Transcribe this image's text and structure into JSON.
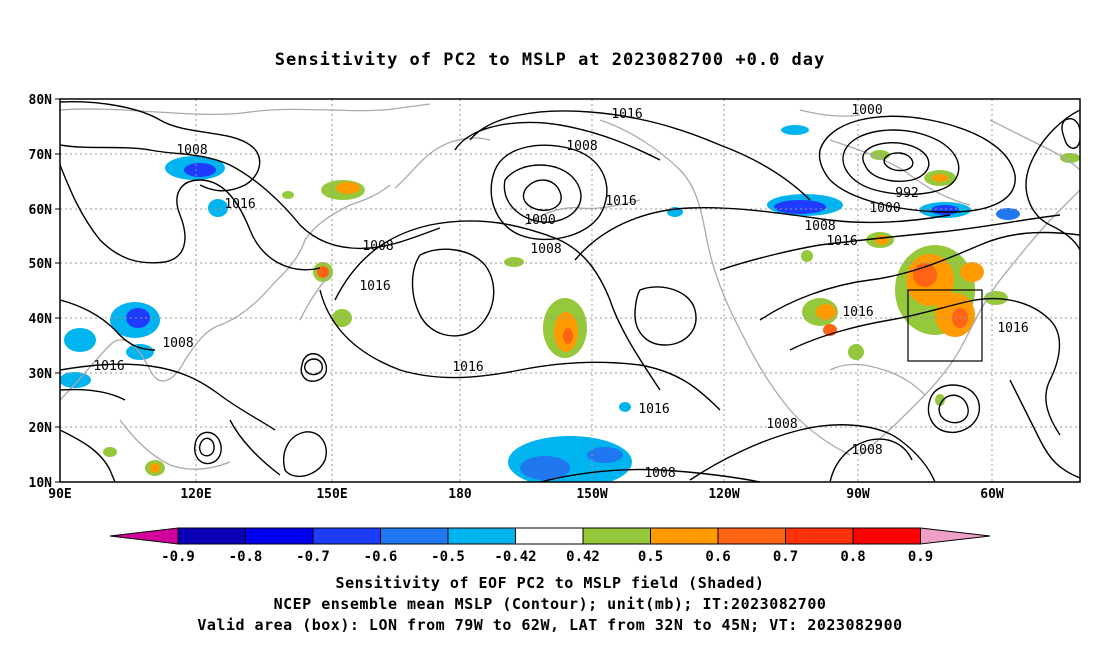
{
  "title": "Sensitivity of PC2 to MSLP at 2023082700 +0.0 day",
  "map": {
    "lat_labels": [
      "80N",
      "70N",
      "60N",
      "50N",
      "40N",
      "30N",
      "20N",
      "10N"
    ],
    "lon_labels": [
      "90E",
      "120E",
      "150E",
      "180",
      "150W",
      "120W",
      "90W",
      "60W"
    ],
    "lat_range": [
      10,
      80
    ],
    "lon_range": [
      90,
      330
    ],
    "valid_box": {
      "lon_west": -79,
      "lon_east": -62,
      "lat_south": 32,
      "lat_north": 45
    },
    "contour_labels": [
      "1016",
      "1008",
      "1000",
      "1008",
      "1016",
      "1008",
      "1000",
      "1008",
      "1016",
      "992",
      "1000",
      "1008",
      "1016",
      "1016",
      "1016",
      "1008",
      "1016",
      "1016",
      "1016",
      "1008",
      "1008",
      "1008"
    ],
    "colors": {
      "contour": "#000000",
      "coastline": "#aaaaaa",
      "grid": "#999999"
    }
  },
  "colorbar": {
    "tick_labels": [
      "-0.9",
      "-0.8",
      "-0.7",
      "-0.6",
      "-0.5",
      "-0.42",
      "0.42",
      "0.5",
      "0.6",
      "0.7",
      "0.8",
      "0.9"
    ],
    "colors": [
      "#d2009a",
      "#0a00b8",
      "#0000f0",
      "#1e3cff",
      "#2078f0",
      "#00b4f0",
      "#ffffff",
      "#96c83c",
      "#ff9b00",
      "#ff6414",
      "#ff320a",
      "#ff0000",
      "#f0a0c8"
    ]
  },
  "captions": {
    "line1": "Sensitivity of EOF PC2 to MSLP field (Shaded)",
    "line2": "NCEP ensemble mean MSLP (Contour); unit(mb); IT:2023082700",
    "line3": "Valid area (box): LON from 79W to 62W, LAT from 32N to 45N; VT: 2023082900"
  }
}
